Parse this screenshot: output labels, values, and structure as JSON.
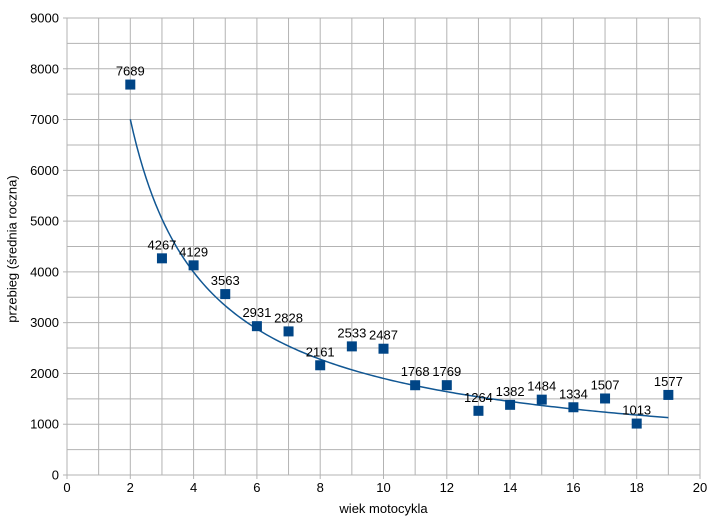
{
  "chart_data": {
    "type": "scatter",
    "x": [
      2,
      3,
      4,
      5,
      6,
      7,
      8,
      9,
      10,
      11,
      12,
      13,
      14,
      15,
      16,
      17,
      18,
      19
    ],
    "values": [
      7689,
      4267,
      4129,
      3563,
      2931,
      2828,
      2161,
      2533,
      2487,
      1768,
      1769,
      1264,
      1382,
      1484,
      1334,
      1507,
      1013,
      1577
    ],
    "point_labels": [
      "7689",
      "4267",
      "4129",
      "3563",
      "2931",
      "2828",
      "2161",
      "2533",
      "2487",
      "1768",
      "1769",
      "1264",
      "1382",
      "1484",
      "1334",
      "1507",
      "1013",
      "1577"
    ],
    "title": "",
    "xlabel": "wiek motocykla",
    "ylabel": "przebieg (średnia roczna)",
    "xlim": [
      0,
      20
    ],
    "ylim": [
      0,
      9000
    ],
    "x_tick_labels": [
      "0",
      "2",
      "4",
      "6",
      "8",
      "10",
      "12",
      "14",
      "16",
      "18",
      "20"
    ],
    "y_tick_labels": [
      "0",
      "1000",
      "2000",
      "3000",
      "4000",
      "5000",
      "6000",
      "7000",
      "8000",
      "9000"
    ],
    "x_major_step": 2,
    "x_minor_step": 1,
    "y_major_step": 1000,
    "y_minor_step": 500,
    "grid": true,
    "legend_position": "none",
    "trendline": {
      "type": "power",
      "a": 12280,
      "b": -0.81,
      "x_start": 2,
      "x_end": 19
    }
  },
  "colors": {
    "series": "#004586",
    "trend": "#115793",
    "grid": "#b3b3b3",
    "axis": "#b3b3b3",
    "text": "#000000",
    "background": "#ffffff"
  }
}
